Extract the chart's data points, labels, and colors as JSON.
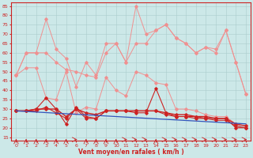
{
  "x": [
    0,
    1,
    2,
    3,
    4,
    5,
    6,
    7,
    8,
    9,
    10,
    11,
    12,
    13,
    14,
    15,
    16,
    17,
    18,
    19,
    20,
    21,
    22,
    23
  ],
  "series": [
    {
      "name": "rafales_light1",
      "color": "#f09090",
      "lw": 0.7,
      "marker": "D",
      "markersize": 1.8,
      "values": [
        48,
        60,
        60,
        78,
        62,
        57,
        42,
        55,
        48,
        65,
        65,
        55,
        85,
        70,
        72,
        75,
        68,
        65,
        60,
        63,
        60,
        72,
        55,
        38
      ]
    },
    {
      "name": "rafales_light2",
      "color": "#f09090",
      "lw": 0.7,
      "marker": "D",
      "markersize": 1.8,
      "values": [
        48,
        60,
        60,
        60,
        55,
        51,
        50,
        48,
        47,
        60,
        65,
        55,
        65,
        65,
        72,
        75,
        68,
        65,
        60,
        63,
        62,
        72,
        55,
        38
      ]
    },
    {
      "name": "vent_light",
      "color": "#f09090",
      "lw": 0.7,
      "marker": "D",
      "markersize": 1.8,
      "values": [
        48,
        52,
        52,
        36,
        35,
        50,
        28,
        31,
        30,
        47,
        40,
        37,
        50,
        48,
        44,
        43,
        30,
        30,
        29,
        27,
        26,
        26,
        22,
        21
      ]
    },
    {
      "name": "rafales_dark",
      "color": "#cc2222",
      "lw": 0.8,
      "marker": "D",
      "markersize": 1.8,
      "values": [
        29,
        29,
        30,
        36,
        30,
        22,
        31,
        26,
        25,
        29,
        29,
        29,
        28,
        28,
        41,
        28,
        26,
        26,
        26,
        25,
        25,
        25,
        20,
        20
      ]
    },
    {
      "name": "vent_dark1",
      "color": "#cc2222",
      "lw": 1.0,
      "marker": "D",
      "markersize": 1.8,
      "values": [
        29,
        29,
        30,
        30,
        30,
        26,
        30,
        28,
        27,
        29,
        29,
        29,
        29,
        29,
        29,
        28,
        27,
        27,
        26,
        26,
        25,
        25,
        22,
        21
      ]
    },
    {
      "name": "vent_dark2",
      "color": "#cc2222",
      "lw": 0.8,
      "marker": "D",
      "markersize": 1.8,
      "values": [
        29,
        29,
        29,
        31,
        28,
        25,
        30,
        25,
        25,
        29,
        29,
        29,
        29,
        29,
        29,
        27,
        26,
        26,
        25,
        25,
        24,
        24,
        21,
        20
      ]
    },
    {
      "name": "trend_blue",
      "color": "#3355bb",
      "lw": 0.9,
      "marker": null,
      "markersize": 0,
      "values": [
        29,
        28.7,
        28.4,
        28.1,
        27.8,
        27.5,
        27.2,
        26.9,
        26.6,
        26.3,
        26.0,
        25.7,
        25.4,
        25.1,
        24.8,
        24.5,
        24.2,
        23.9,
        23.6,
        23.3,
        23.0,
        22.7,
        22.4,
        22.1
      ]
    }
  ],
  "wind_arrows": {
    "x": [
      0,
      1,
      2,
      3,
      4,
      5,
      6,
      7,
      8,
      9,
      10,
      11,
      12,
      13,
      14,
      15,
      16,
      17,
      18,
      19,
      20,
      21,
      22,
      23
    ],
    "angles": [
      45,
      45,
      45,
      45,
      45,
      45,
      0,
      45,
      45,
      45,
      45,
      0,
      0,
      0,
      45,
      0,
      0,
      0,
      0,
      0,
      0,
      0,
      0,
      0
    ]
  },
  "ylim": [
    13,
    87
  ],
  "yticks": [
    15,
    20,
    25,
    30,
    35,
    40,
    45,
    50,
    55,
    60,
    65,
    70,
    75,
    80,
    85
  ],
  "xlim": [
    -0.5,
    23.5
  ],
  "xticks": [
    0,
    1,
    2,
    3,
    4,
    5,
    6,
    7,
    8,
    9,
    10,
    11,
    12,
    13,
    14,
    15,
    16,
    17,
    18,
    19,
    20,
    21,
    22,
    23
  ],
  "xlabel": "Vent moyen/en rafales ( km/h )",
  "bg_color": "#cce8e8",
  "grid_color": "#aacccc",
  "axis_color": "#cc2222",
  "label_color": "#cc2222",
  "tick_color": "#cc2222",
  "arrow_color": "#cc2222"
}
